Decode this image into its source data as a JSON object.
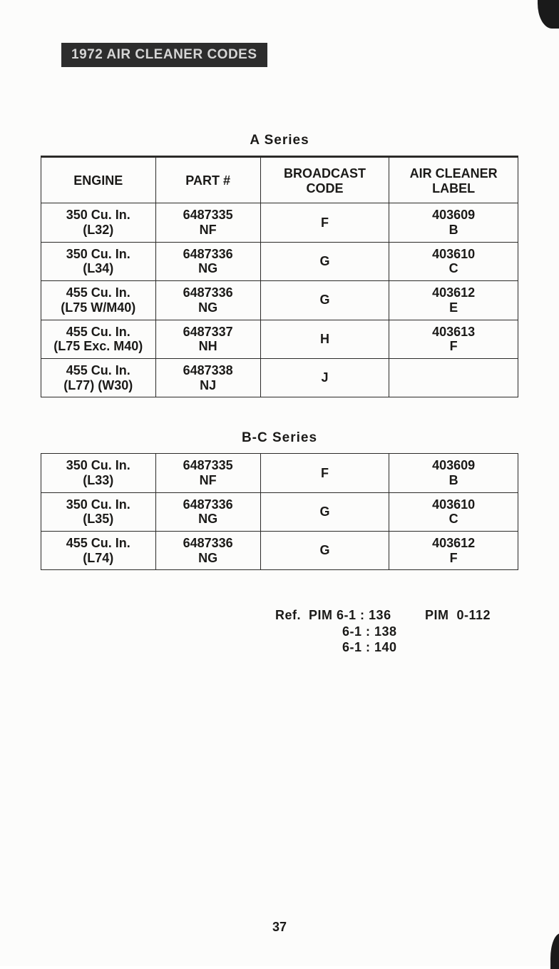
{
  "title": "1972 AIR CLEANER CODES",
  "series_a_label": "A  Series",
  "series_bc_label": "B-C Series",
  "headers": {
    "engine": "ENGINE",
    "part": "PART #",
    "code": "BROADCAST CODE",
    "label": "AIR CLEANER LABEL"
  },
  "series_a": [
    {
      "engine_l1": "350 Cu. In.",
      "engine_l2": "(L32)",
      "part_l1": "6487335",
      "part_l2": "NF",
      "code": "F",
      "label_l1": "403609",
      "label_l2": "B"
    },
    {
      "engine_l1": "350 Cu. In.",
      "engine_l2": "(L34)",
      "part_l1": "6487336",
      "part_l2": "NG",
      "code": "G",
      "label_l1": "403610",
      "label_l2": "C"
    },
    {
      "engine_l1": "455 Cu. In.",
      "engine_l2": "(L75 W/M40)",
      "part_l1": "6487336",
      "part_l2": "NG",
      "code": "G",
      "label_l1": "403612",
      "label_l2": "E"
    },
    {
      "engine_l1": "455 Cu. In.",
      "engine_l2": "(L75 Exc. M40)",
      "part_l1": "6487337",
      "part_l2": "NH",
      "code": "H",
      "label_l1": "403613",
      "label_l2": "F"
    },
    {
      "engine_l1": "455 Cu. In.",
      "engine_l2": "(L77) (W30)",
      "part_l1": "6487338",
      "part_l2": "NJ",
      "code": "J",
      "label_l1": "",
      "label_l2": ""
    }
  ],
  "series_bc": [
    {
      "engine_l1": "350 Cu. In.",
      "engine_l2": "(L33)",
      "part_l1": "6487335",
      "part_l2": "NF",
      "code": "F",
      "label_l1": "403609",
      "label_l2": "B"
    },
    {
      "engine_l1": "350 Cu. In.",
      "engine_l2": "(L35)",
      "part_l1": "6487336",
      "part_l2": "NG",
      "code": "G",
      "label_l1": "403610",
      "label_l2": "C"
    },
    {
      "engine_l1": "455 Cu. In.",
      "engine_l2": "(L74)",
      "part_l1": "6487336",
      "part_l2": "NG",
      "code": "G",
      "label_l1": "403612",
      "label_l2": "F"
    }
  ],
  "refs": {
    "prefix": "Ref.  PIM",
    "left": [
      "6-1 : 136",
      "6-1 : 138",
      "6-1 : 140"
    ],
    "right": "PIM  0-112"
  },
  "page_number": "37"
}
